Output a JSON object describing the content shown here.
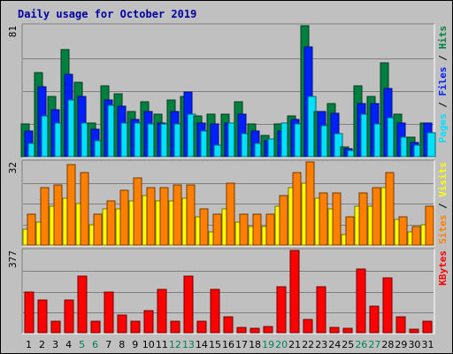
{
  "chart_data": {
    "type": "bar",
    "title": "Daily usage for October 2019",
    "categories": [
      "1",
      "2",
      "3",
      "4",
      "5",
      "6",
      "7",
      "8",
      "9",
      "10",
      "11",
      "12",
      "13",
      "14",
      "15",
      "16",
      "17",
      "18",
      "19",
      "20",
      "21",
      "22",
      "23",
      "24",
      "25",
      "26",
      "27",
      "28",
      "29",
      "30",
      "31"
    ],
    "weekend_days": [
      "5",
      "6",
      "12",
      "13",
      "19",
      "20",
      "26",
      "27"
    ],
    "panels": [
      {
        "scale_label": "81",
        "ylim": [
          0,
          81
        ],
        "right_labels": [
          "Pages",
          "Files",
          "Hits"
        ],
        "series": [
          {
            "name": "Hits",
            "color": "#008040",
            "values": [
              20,
              52,
              37,
              66,
              46,
              21,
              44,
              39,
              28,
              34,
              26,
              35,
              37,
              25,
              26,
              26,
              34,
              20,
              13,
              20,
              25,
              81,
              28,
              33,
              6,
              44,
              37,
              58,
              26,
              12,
              21
            ]
          },
          {
            "name": "Files",
            "color": "#0020ff",
            "values": [
              16,
              43,
              29,
              51,
              37,
              17,
              35,
              31,
              23,
              28,
              21,
              28,
              40,
              21,
              20,
              21,
              26,
              16,
              10,
              16,
              23,
              68,
              28,
              27,
              5,
              33,
              33,
              42,
              21,
              9,
              21
            ]
          },
          {
            "name": "Pages",
            "color": "#00e0ff",
            "values": [
              8,
              25,
              21,
              35,
              21,
              10,
              32,
              21,
              21,
              20,
              20,
              20,
              26,
              16,
              7,
              21,
              14,
              8,
              11,
              21,
              20,
              37,
              19,
              14,
              4,
              26,
              20,
              24,
              12,
              7,
              15
            ]
          }
        ]
      },
      {
        "scale_label": "32",
        "ylim": [
          0,
          32
        ],
        "right_labels": [
          "Sites",
          "Visits"
        ],
        "series": [
          {
            "name": "Visits",
            "color": "#ffff00",
            "values": [
              6,
              9,
              15,
              18,
              16,
              8,
              14,
              14,
              17,
              19,
              17,
              17,
              18,
              11,
              5,
              14,
              9,
              7,
              7,
              15,
              22,
              24,
              18,
              14,
              4,
              15,
              15,
              22,
              10,
              5,
              8
            ]
          },
          {
            "name": "Sites",
            "color": "#ff8000",
            "values": [
              12,
              22,
              23,
              31,
              28,
              12,
              17,
              21,
              26,
              22,
              22,
              23,
              23,
              14,
              12,
              24,
              12,
              12,
              12,
              19,
              28,
              32,
              20,
              20,
              11,
              20,
              22,
              28,
              11,
              7,
              15
            ]
          }
        ]
      },
      {
        "scale_label": "377",
        "ylim": [
          0,
          377
        ],
        "right_labels": [
          "KBytes"
        ],
        "series": [
          {
            "name": "KBytes",
            "color": "#ff0000",
            "values": [
              187,
              150,
              52,
              150,
              260,
              52,
              187,
              80,
              52,
              100,
              200,
              52,
              260,
              52,
              200,
              72,
              25,
              19,
              28,
              212,
              377,
              60,
              212,
              25,
              19,
              290,
              120,
              252,
              72,
              16,
              52
            ]
          }
        ]
      }
    ]
  }
}
